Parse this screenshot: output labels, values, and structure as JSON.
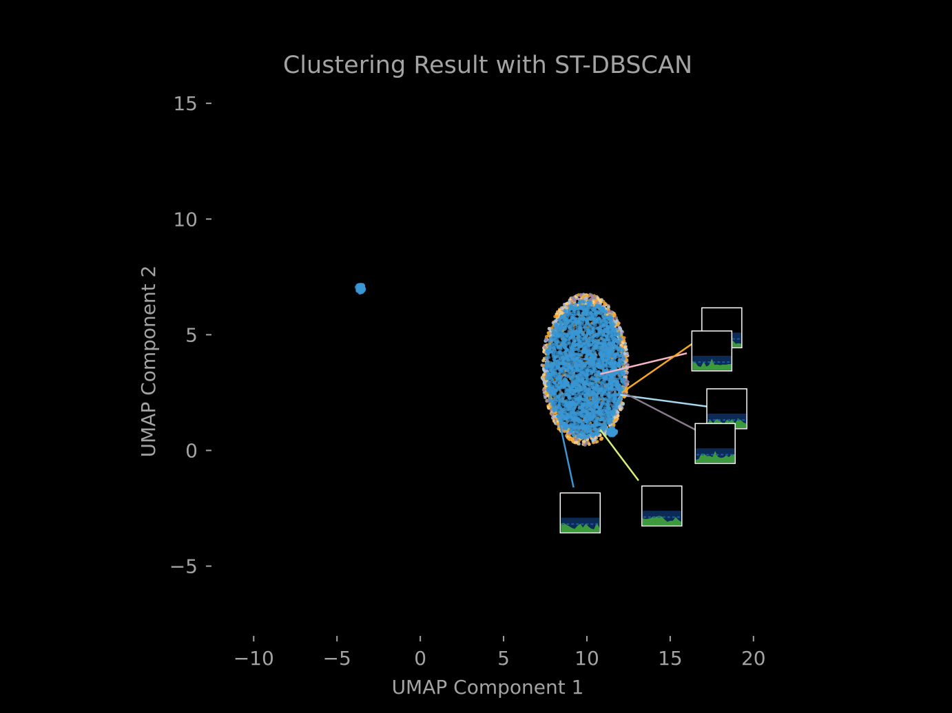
{
  "chart_data": {
    "type": "scatter",
    "title": "Clustering Result with ST-DBSCAN",
    "xlabel": "UMAP Component 1",
    "ylabel": "UMAP Component 2",
    "xlim": [
      -11.5,
      21
    ],
    "ylim": [
      -7.6,
      15.6
    ],
    "xticks": [
      -10,
      -5,
      0,
      5,
      10,
      15,
      20
    ],
    "xtick_labels": [
      "−10",
      "−5",
      "0",
      "5",
      "10",
      "15",
      "20"
    ],
    "yticks": [
      -5,
      0,
      5,
      10,
      15
    ],
    "ytick_labels": [
      "−5",
      "0",
      "5",
      "10",
      "15"
    ],
    "grid": false,
    "background": "#000000",
    "text_color": "#a3a3a3",
    "main_cluster": {
      "center": [
        9.9,
        3.5
      ],
      "radius_x": 2.55,
      "radius_y": 3.2,
      "colors": [
        "#3a97d4",
        "#f5a623",
        "#b0c4de",
        "#ffd27f",
        "#9e8aa8"
      ],
      "dominant_color": "#3a97d4"
    },
    "side_clusters": [
      {
        "x": -3.6,
        "y": 7.0,
        "color": "#3a97d4"
      },
      {
        "x": 11.5,
        "y": 0.8,
        "color": "#3a97d4"
      }
    ],
    "annotations": [
      {
        "from": [
          10.8,
          3.3
        ],
        "to": [
          16.0,
          4.2
        ],
        "color": "#f4b6c2",
        "thumb_center": [
          18.1,
          5.3
        ]
      },
      {
        "from": [
          12.1,
          2.5
        ],
        "to": [
          16.3,
          4.6
        ],
        "color": "#f5a623",
        "thumb_center": [
          17.5,
          4.3
        ]
      },
      {
        "from": [
          12.0,
          2.4
        ],
        "to": [
          17.2,
          1.9
        ],
        "color": "#a8d8f0",
        "thumb_center": [
          18.4,
          1.8
        ]
      },
      {
        "from": [
          12.2,
          2.5
        ],
        "to": [
          16.5,
          0.9
        ],
        "color": "#8a7a8e",
        "thumb_center": [
          17.7,
          0.3
        ]
      },
      {
        "from": [
          10.8,
          0.9
        ],
        "to": [
          13.1,
          -1.3
        ],
        "color": "#d4f078",
        "thumb_center": [
          14.5,
          -2.4
        ]
      },
      {
        "from": [
          8.4,
          1.1
        ],
        "to": [
          9.2,
          -1.6
        ],
        "color": "#3a97d4",
        "thumb_center": [
          9.6,
          -2.7
        ]
      }
    ]
  }
}
